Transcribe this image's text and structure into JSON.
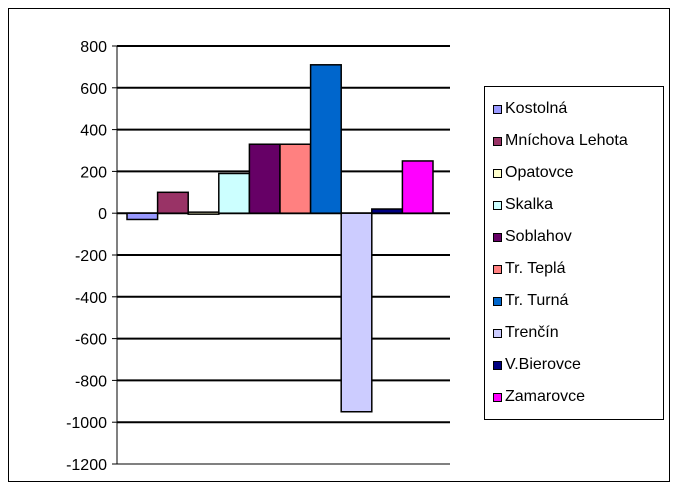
{
  "chart_data": {
    "type": "bar",
    "title": "",
    "xlabel": "",
    "ylabel": "",
    "ylim": [
      -1200,
      800
    ],
    "yticks": [
      800,
      600,
      400,
      200,
      0,
      -200,
      -400,
      -600,
      -800,
      -1000,
      -1200
    ],
    "grid": "horizontal major gridlines",
    "legend_position": "right",
    "series": [
      {
        "name": "Kostolná",
        "value": -30,
        "color": "#9999ff"
      },
      {
        "name": "Mníchova Lehota",
        "value": 100,
        "color": "#993366"
      },
      {
        "name": "Opatovce",
        "value": 5,
        "color": "#ffffcc"
      },
      {
        "name": "Skalka",
        "value": 190,
        "color": "#ccffff"
      },
      {
        "name": "Soblahov",
        "value": 330,
        "color": "#660066"
      },
      {
        "name": "Tr. Teplá",
        "value": 330,
        "color": "#ff8080"
      },
      {
        "name": "Tr. Turná",
        "value": 710,
        "color": "#0066cc"
      },
      {
        "name": "Trenčín",
        "value": -950,
        "color": "#ccccff"
      },
      {
        "name": "V.Bierovce",
        "value": 20,
        "color": "#000080"
      },
      {
        "name": "Zamarovce",
        "value": 250,
        "color": "#ff00ff"
      }
    ]
  }
}
